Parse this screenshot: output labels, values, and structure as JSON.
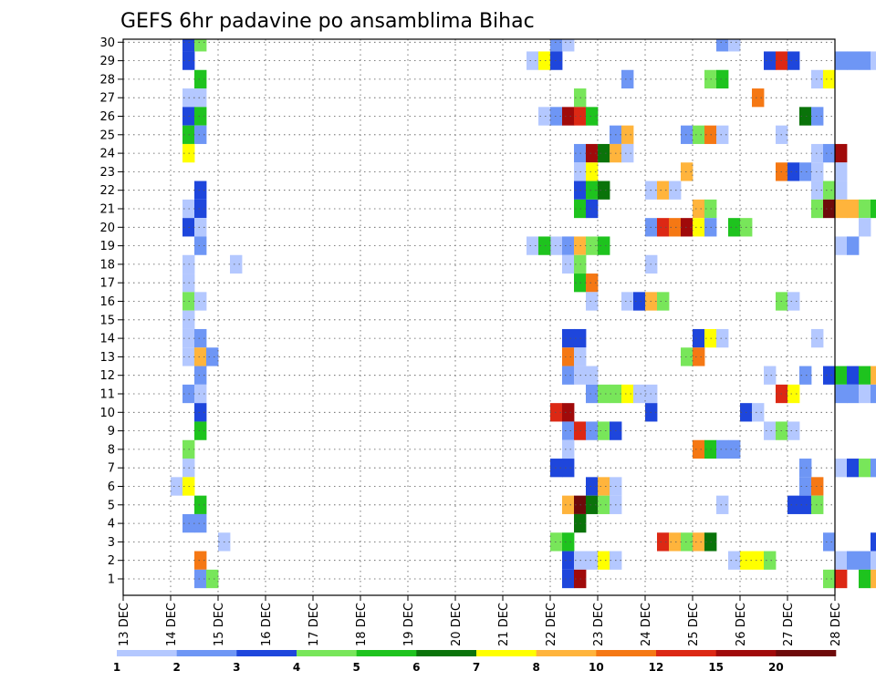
{
  "chart_data": {
    "type": "heatmap",
    "title": "GEFS 6hr padavine po ansamblima Bihac",
    "xlabel": "",
    "ylabel": "",
    "x_tick_labels": [
      "13 DEC",
      "14 DEC",
      "15 DEC",
      "16 DEC",
      "17 DEC",
      "18 DEC",
      "19 DEC",
      "20 DEC",
      "21 DEC",
      "22 DEC",
      "23 DEC",
      "24 DEC",
      "25 DEC",
      "26 DEC",
      "27 DEC",
      "28 DEC"
    ],
    "y_tick_labels": [
      "1",
      "2",
      "3",
      "4",
      "5",
      "6",
      "7",
      "8",
      "9",
      "10",
      "11",
      "12",
      "13",
      "14",
      "15",
      "16",
      "17",
      "18",
      "19",
      "20",
      "21",
      "22",
      "23",
      "24",
      "25",
      "26",
      "27",
      "28",
      "29",
      "30"
    ],
    "members": 30,
    "steps_per_day": 4,
    "grid": true,
    "colorbar": {
      "labels": [
        "1",
        "2",
        "3",
        "4",
        "5",
        "6",
        "7",
        "8",
        "10",
        "12",
        "15",
        "20"
      ],
      "colors": [
        "#b4c8ff",
        "#6e96f5",
        "#1e46dc",
        "#78e65a",
        "#1ec31e",
        "#0a730a",
        "#ffff00",
        "#ffb43c",
        "#f57814",
        "#dc2814",
        "#a00a0a",
        "#6e0a0a"
      ]
    },
    "levels": {
      "1": "#b4c8ff",
      "2": "#6e96f5",
      "3": "#1e46dc",
      "4": "#78e65a",
      "5": "#1ec31e",
      "6": "#0a730a",
      "7": "#ffff00",
      "8": "#ffb43c",
      "9": "#f57814",
      "10": "#dc2814",
      "11": "#a00a0a",
      "12": "#6e0a0a"
    },
    "cells": [
      [
        30,
        5,
        2
      ],
      [
        30,
        6,
        1
      ],
      [
        30,
        40,
        7
      ],
      [
        30,
        41,
        2
      ],
      [
        30,
        44,
        3
      ],
      [
        30,
        53,
        3
      ],
      [
        30,
        55,
        3
      ],
      [
        30,
        56,
        1
      ],
      [
        30,
        58,
        1
      ],
      [
        30,
        61,
        1
      ],
      [
        30,
        62,
        7
      ],
      [
        30,
        63,
        6
      ],
      [
        30,
        64,
        4
      ],
      [
        30,
        65,
        5
      ],
      [
        30,
        66,
        6
      ],
      [
        30,
        67,
        7
      ],
      [
        30,
        68,
        2
      ],
      [
        29,
        5,
        3
      ],
      [
        29,
        6,
        4
      ],
      [
        29,
        36,
        2
      ],
      [
        29,
        37,
        1
      ],
      [
        29,
        50,
        2
      ],
      [
        29,
        51,
        1
      ],
      [
        29,
        65,
        5
      ],
      [
        29,
        66,
        7
      ],
      [
        29,
        67,
        12
      ],
      [
        29,
        68,
        9
      ],
      [
        29,
        69,
        2
      ],
      [
        28,
        5,
        3
      ],
      [
        28,
        34,
        1
      ],
      [
        28,
        35,
        7
      ],
      [
        28,
        36,
        3
      ],
      [
        28,
        54,
        3
      ],
      [
        28,
        55,
        10
      ],
      [
        28,
        56,
        3
      ],
      [
        28,
        60,
        2
      ],
      [
        28,
        61,
        2
      ],
      [
        28,
        62,
        2
      ],
      [
        28,
        63,
        1
      ],
      [
        28,
        64,
        1
      ],
      [
        28,
        65,
        2
      ],
      [
        28,
        66,
        5
      ],
      [
        28,
        67,
        3
      ],
      [
        28,
        68,
        2
      ],
      [
        28,
        69,
        2
      ],
      [
        27,
        6,
        5
      ],
      [
        27,
        42,
        2
      ],
      [
        27,
        49,
        4
      ],
      [
        27,
        50,
        5
      ],
      [
        27,
        58,
        1
      ],
      [
        27,
        59,
        7
      ],
      [
        26,
        5,
        1
      ],
      [
        26,
        6,
        1
      ],
      [
        26,
        38,
        4
      ],
      [
        26,
        53,
        9
      ],
      [
        25,
        5,
        3
      ],
      [
        25,
        6,
        5
      ],
      [
        25,
        35,
        1
      ],
      [
        25,
        36,
        2
      ],
      [
        25,
        37,
        11
      ],
      [
        25,
        38,
        10
      ],
      [
        25,
        39,
        5
      ],
      [
        25,
        57,
        6
      ],
      [
        25,
        58,
        2
      ],
      [
        25,
        64,
        1
      ],
      [
        25,
        65,
        2
      ],
      [
        24,
        5,
        5
      ],
      [
        24,
        6,
        2
      ],
      [
        24,
        41,
        2
      ],
      [
        24,
        42,
        8
      ],
      [
        24,
        47,
        2
      ],
      [
        24,
        48,
        4
      ],
      [
        24,
        49,
        9
      ],
      [
        24,
        50,
        1
      ],
      [
        24,
        55,
        1
      ],
      [
        23,
        5,
        7
      ],
      [
        23,
        38,
        2
      ],
      [
        23,
        39,
        11
      ],
      [
        23,
        40,
        6
      ],
      [
        23,
        41,
        8
      ],
      [
        23,
        42,
        1
      ],
      [
        23,
        58,
        1
      ],
      [
        23,
        59,
        2
      ],
      [
        23,
        60,
        11
      ],
      [
        23,
        64,
        4
      ],
      [
        23,
        65,
        6
      ],
      [
        23,
        66,
        2
      ],
      [
        23,
        68,
        2
      ],
      [
        22,
        38,
        1
      ],
      [
        22,
        39,
        7
      ],
      [
        22,
        47,
        8
      ],
      [
        22,
        55,
        9
      ],
      [
        22,
        56,
        3
      ],
      [
        22,
        57,
        2
      ],
      [
        22,
        58,
        1
      ],
      [
        22,
        60,
        1
      ],
      [
        21,
        6,
        3
      ],
      [
        21,
        38,
        3
      ],
      [
        21,
        39,
        5
      ],
      [
        21,
        40,
        6
      ],
      [
        21,
        44,
        1
      ],
      [
        21,
        45,
        8
      ],
      [
        21,
        46,
        1
      ],
      [
        21,
        58,
        1
      ],
      [
        21,
        59,
        4
      ],
      [
        21,
        60,
        1
      ],
      [
        21,
        69,
        8
      ],
      [
        21,
        70,
        3
      ],
      [
        20,
        5,
        1
      ],
      [
        20,
        6,
        3
      ],
      [
        20,
        38,
        5
      ],
      [
        20,
        39,
        3
      ],
      [
        20,
        48,
        8
      ],
      [
        20,
        49,
        4
      ],
      [
        20,
        58,
        4
      ],
      [
        20,
        59,
        12
      ],
      [
        20,
        60,
        8
      ],
      [
        20,
        61,
        8
      ],
      [
        20,
        62,
        4
      ],
      [
        20,
        63,
        5
      ],
      [
        20,
        64,
        4
      ],
      [
        20,
        65,
        4
      ],
      [
        20,
        66,
        8
      ],
      [
        20,
        67,
        1
      ],
      [
        20,
        68,
        4
      ],
      [
        20,
        70,
        1
      ],
      [
        19,
        5,
        3
      ],
      [
        19,
        6,
        1
      ],
      [
        19,
        44,
        2
      ],
      [
        19,
        45,
        10
      ],
      [
        19,
        46,
        9
      ],
      [
        19,
        47,
        11
      ],
      [
        19,
        48,
        7
      ],
      [
        19,
        49,
        2
      ],
      [
        19,
        51,
        5
      ],
      [
        19,
        52,
        4
      ],
      [
        19,
        62,
        1
      ],
      [
        18,
        6,
        2
      ],
      [
        18,
        36,
        1
      ],
      [
        18,
        37,
        1
      ],
      [
        18,
        34,
        1
      ],
      [
        18,
        35,
        5
      ],
      [
        18,
        37,
        2
      ],
      [
        18,
        38,
        8
      ],
      [
        18,
        39,
        4
      ],
      [
        18,
        40,
        5
      ],
      [
        18,
        60,
        1
      ],
      [
        18,
        61,
        2
      ],
      [
        17,
        5,
        1
      ],
      [
        17,
        9,
        1
      ],
      [
        17,
        37,
        1
      ],
      [
        17,
        38,
        4
      ],
      [
        17,
        44,
        1
      ],
      [
        16,
        5,
        1
      ],
      [
        16,
        38,
        5
      ],
      [
        16,
        39,
        9
      ],
      [
        16,
        69,
        2
      ],
      [
        16,
        70,
        9
      ],
      [
        15,
        5,
        4
      ],
      [
        15,
        6,
        1
      ],
      [
        15,
        39,
        1
      ],
      [
        15,
        42,
        1
      ],
      [
        15,
        43,
        3
      ],
      [
        15,
        44,
        8
      ],
      [
        15,
        45,
        4
      ],
      [
        15,
        55,
        4
      ],
      [
        15,
        56,
        1
      ],
      [
        15,
        67,
        2
      ],
      [
        14,
        5,
        1
      ],
      [
        13,
        5,
        1
      ],
      [
        13,
        6,
        2
      ],
      [
        13,
        37,
        3
      ],
      [
        13,
        38,
        3
      ],
      [
        13,
        48,
        3
      ],
      [
        13,
        49,
        7
      ],
      [
        13,
        50,
        1
      ],
      [
        13,
        58,
        1
      ],
      [
        12,
        5,
        1
      ],
      [
        12,
        6,
        8
      ],
      [
        12,
        7,
        2
      ],
      [
        12,
        37,
        9
      ],
      [
        12,
        38,
        1
      ],
      [
        12,
        47,
        4
      ],
      [
        12,
        48,
        9
      ],
      [
        11,
        6,
        2
      ],
      [
        11,
        37,
        2
      ],
      [
        11,
        38,
        1
      ],
      [
        11,
        39,
        1
      ],
      [
        11,
        54,
        1
      ],
      [
        11,
        57,
        2
      ],
      [
        11,
        59,
        3
      ],
      [
        11,
        60,
        5
      ],
      [
        11,
        61,
        3
      ],
      [
        11,
        62,
        5
      ],
      [
        11,
        63,
        8
      ],
      [
        11,
        64,
        6
      ],
      [
        11,
        65,
        4
      ],
      [
        11,
        66,
        1
      ],
      [
        11,
        67,
        1
      ],
      [
        10,
        5,
        2
      ],
      [
        10,
        6,
        1
      ],
      [
        10,
        39,
        2
      ],
      [
        10,
        40,
        4
      ],
      [
        10,
        41,
        4
      ],
      [
        10,
        42,
        7
      ],
      [
        10,
        43,
        1
      ],
      [
        10,
        44,
        1
      ],
      [
        10,
        55,
        10
      ],
      [
        10,
        56,
        7
      ],
      [
        10,
        60,
        2
      ],
      [
        10,
        61,
        2
      ],
      [
        10,
        62,
        1
      ],
      [
        10,
        63,
        2
      ],
      [
        10,
        64,
        1
      ],
      [
        9,
        6,
        3
      ],
      [
        9,
        36,
        10
      ],
      [
        9,
        37,
        11
      ],
      [
        9,
        44,
        3
      ],
      [
        9,
        52,
        3
      ],
      [
        9,
        53,
        1
      ],
      [
        8,
        6,
        5
      ],
      [
        8,
        37,
        2
      ],
      [
        8,
        38,
        10
      ],
      [
        8,
        39,
        2
      ],
      [
        8,
        40,
        4
      ],
      [
        8,
        41,
        3
      ],
      [
        8,
        54,
        1
      ],
      [
        8,
        55,
        4
      ],
      [
        8,
        56,
        1
      ],
      [
        7,
        5,
        4
      ],
      [
        7,
        37,
        1
      ],
      [
        7,
        48,
        9
      ],
      [
        7,
        49,
        5
      ],
      [
        7,
        50,
        2
      ],
      [
        7,
        51,
        2
      ],
      [
        6,
        5,
        1
      ],
      [
        6,
        36,
        3
      ],
      [
        6,
        37,
        3
      ],
      [
        6,
        57,
        2
      ],
      [
        6,
        60,
        1
      ],
      [
        6,
        61,
        3
      ],
      [
        6,
        62,
        4
      ],
      [
        6,
        63,
        2
      ],
      [
        6,
        64,
        2
      ],
      [
        6,
        67,
        2
      ],
      [
        6,
        68,
        8
      ],
      [
        5,
        4,
        1
      ],
      [
        5,
        5,
        7
      ],
      [
        5,
        39,
        3
      ],
      [
        5,
        40,
        8
      ],
      [
        5,
        41,
        1
      ],
      [
        5,
        57,
        2
      ],
      [
        5,
        58,
        9
      ],
      [
        5,
        65,
        1
      ],
      [
        5,
        66,
        1
      ],
      [
        4,
        6,
        5
      ],
      [
        4,
        37,
        8
      ],
      [
        4,
        38,
        12
      ],
      [
        4,
        39,
        6
      ],
      [
        4,
        40,
        4
      ],
      [
        4,
        41,
        1
      ],
      [
        4,
        50,
        1
      ],
      [
        4,
        56,
        3
      ],
      [
        4,
        57,
        3
      ],
      [
        4,
        58,
        4
      ],
      [
        3,
        5,
        2
      ],
      [
        3,
        6,
        2
      ],
      [
        3,
        38,
        6
      ],
      [
        2,
        8,
        1
      ],
      [
        2,
        36,
        4
      ],
      [
        2,
        37,
        5
      ],
      [
        2,
        45,
        10
      ],
      [
        2,
        46,
        8
      ],
      [
        2,
        47,
        4
      ],
      [
        2,
        48,
        8
      ],
      [
        2,
        49,
        6
      ],
      [
        2,
        59,
        2
      ],
      [
        2,
        63,
        3
      ],
      [
        2,
        64,
        2
      ],
      [
        1,
        6,
        9
      ],
      [
        1,
        37,
        3
      ],
      [
        1,
        38,
        1
      ],
      [
        1,
        39,
        1
      ],
      [
        1,
        40,
        7
      ],
      [
        1,
        41,
        1
      ],
      [
        1,
        51,
        1
      ],
      [
        1,
        52,
        7
      ],
      [
        1,
        53,
        7
      ],
      [
        1,
        54,
        4
      ],
      [
        1,
        60,
        1
      ],
      [
        1,
        61,
        2
      ],
      [
        1,
        62,
        2
      ],
      [
        1,
        63,
        1
      ],
      [
        0,
        6,
        2
      ],
      [
        0,
        7,
        4
      ],
      [
        0,
        37,
        3
      ],
      [
        0,
        38,
        11
      ],
      [
        0,
        59,
        4
      ],
      [
        0,
        60,
        10
      ],
      [
        0,
        62,
        5
      ],
      [
        0,
        63,
        8
      ],
      [
        0,
        64,
        6
      ],
      [
        0,
        65,
        1
      ]
    ]
  }
}
